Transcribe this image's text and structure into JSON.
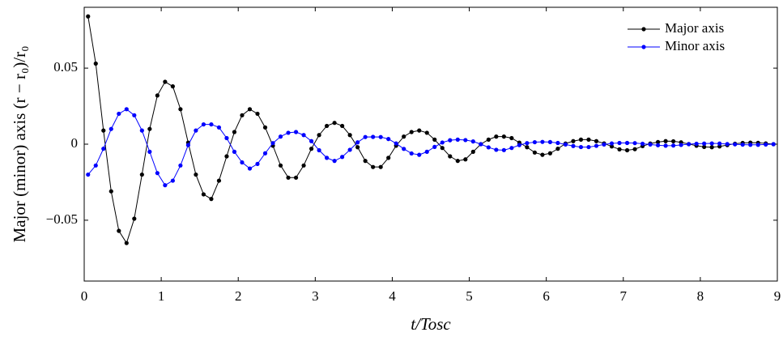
{
  "chart_data": {
    "type": "line",
    "xlabel": "t/Tosc",
    "ylabel": "Major (minor) axis (r − r₀)/r₀",
    "x": [
      0.05,
      0.15,
      0.25,
      0.35,
      0.45,
      0.55,
      0.65,
      0.75,
      0.85,
      0.95,
      1.05,
      1.15,
      1.25,
      1.35,
      1.45,
      1.55,
      1.65,
      1.75,
      1.85,
      1.95,
      2.05,
      2.15,
      2.25,
      2.35,
      2.45,
      2.55,
      2.65,
      2.75,
      2.85,
      2.95,
      3.05,
      3.15,
      3.25,
      3.35,
      3.45,
      3.55,
      3.65,
      3.75,
      3.85,
      3.95,
      4.05,
      4.15,
      4.25,
      4.35,
      4.45,
      4.55,
      4.65,
      4.75,
      4.85,
      4.95,
      5.05,
      5.15,
      5.25,
      5.35,
      5.45,
      5.55,
      5.65,
      5.75,
      5.85,
      5.95,
      6.05,
      6.15,
      6.25,
      6.35,
      6.45,
      6.55,
      6.65,
      6.75,
      6.85,
      6.95,
      7.05,
      7.15,
      7.25,
      7.35,
      7.45,
      7.55,
      7.65,
      7.75,
      7.85,
      7.95,
      8.05,
      8.15,
      8.25,
      8.35,
      8.45,
      8.55,
      8.65,
      8.75,
      8.85,
      8.95
    ],
    "series": [
      {
        "name": "Major axis",
        "color": "#000000",
        "values": [
          0.084,
          0.053,
          0.009,
          -0.031,
          -0.057,
          -0.065,
          -0.049,
          -0.02,
          0.01,
          0.032,
          0.041,
          0.038,
          0.023,
          0.001,
          -0.02,
          -0.033,
          -0.036,
          -0.024,
          -0.008,
          0.008,
          0.019,
          0.023,
          0.02,
          0.011,
          -0.001,
          -0.014,
          -0.022,
          -0.022,
          -0.014,
          -0.003,
          0.006,
          0.012,
          0.014,
          0.012,
          0.006,
          -0.002,
          -0.011,
          -0.015,
          -0.015,
          -0.009,
          -0.001,
          0.005,
          0.008,
          0.009,
          0.0075,
          0.003,
          -0.0025,
          -0.008,
          -0.011,
          -0.01,
          -0.005,
          0,
          0.003,
          0.005,
          0.005,
          0.004,
          0.001,
          -0.002,
          -0.0055,
          -0.007,
          -0.006,
          -0.003,
          0.0004,
          0.002,
          0.003,
          0.003,
          0.002,
          0.0005,
          -0.0015,
          -0.0034,
          -0.004,
          -0.0033,
          -0.0013,
          0.0004,
          0.0014,
          0.002,
          0.0019,
          0.0012,
          0.0001,
          -0.001,
          -0.0018,
          -0.002,
          -0.0015,
          -0.0006,
          0.0003,
          0.0008,
          0.001,
          0.0009,
          0.0005,
          0
        ]
      },
      {
        "name": "Minor axis",
        "color": "#0000ff",
        "values": [
          -0.02,
          -0.014,
          -0.003,
          0.01,
          0.02,
          0.023,
          0.019,
          0.009,
          -0.005,
          -0.019,
          -0.027,
          -0.024,
          -0.014,
          -0.0006,
          0.009,
          0.013,
          0.013,
          0.011,
          0.004,
          -0.005,
          -0.012,
          -0.016,
          -0.013,
          -0.006,
          0.0007,
          0.005,
          0.0075,
          0.008,
          0.006,
          0.002,
          -0.004,
          -0.009,
          -0.011,
          -0.0084,
          -0.0037,
          0.0012,
          0.0047,
          0.0048,
          0.0047,
          0.0034,
          0.0005,
          -0.0031,
          -0.0061,
          -0.007,
          -0.005,
          -0.0018,
          0.0011,
          0.0026,
          0.003,
          0.0027,
          0.0018,
          0,
          -0.0021,
          -0.0037,
          -0.0039,
          -0.0025,
          -0.0006,
          0.0007,
          0.0013,
          0.0015,
          0.0014,
          0.0008,
          -0.0002,
          -0.0012,
          -0.0019,
          -0.0019,
          -0.0011,
          -0.0002,
          0.0005,
          0.0008,
          0.0008,
          0.0007,
          0.0003,
          -0.0002,
          -0.0007,
          -0.001,
          -0.0009,
          -0.0005,
          0,
          0.0003,
          0.0004,
          0.0005,
          0.0004,
          0.0001,
          -0.0001,
          -0.0003,
          -0.0004,
          -0.0004,
          -0.0002,
          0
        ]
      }
    ],
    "xlim": [
      0,
      9
    ],
    "xticks": [
      0,
      1,
      2,
      3,
      4,
      5,
      6,
      7,
      8,
      9
    ],
    "ylim": [
      -0.09,
      0.09
    ],
    "yticks": [
      {
        "value": -0.05,
        "label": "−0.05"
      },
      0,
      0.05
    ],
    "legend": "top-right",
    "grid": false
  }
}
